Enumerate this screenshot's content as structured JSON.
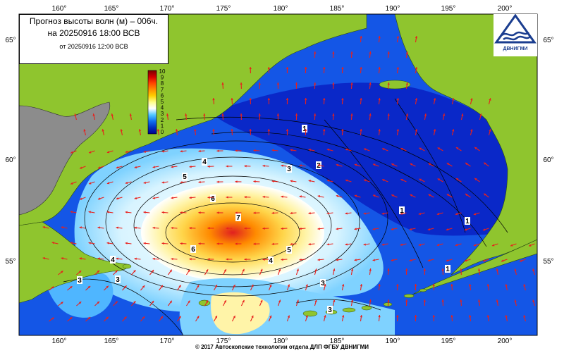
{
  "title": {
    "line1": "Прогноз высоты волн (м) – 006ч.",
    "line2": "на 20250916 18:00 ВСВ",
    "line3": "от 20250916 12:00 ВСВ"
  },
  "logo_text": "ДВНИГМИ",
  "copyright": "© 2017 Автоскопские технологии отдела ДЛП ФГБУ ДВНИГМИ",
  "longitude_labels": [
    "160°",
    "165°",
    "170°",
    "175°",
    "180°",
    "185°",
    "190°",
    "195°",
    "200°"
  ],
  "latitude_labels": [
    "65°",
    "60°",
    "55°"
  ],
  "legend": {
    "values": [
      "10",
      "9",
      "8",
      "7",
      "6",
      "5",
      "4",
      "3",
      "2",
      "1",
      "0"
    ],
    "colors": [
      "#7a0000",
      "#cc0000",
      "#ff3300",
      "#ff8800",
      "#ffcc00",
      "#ffff66",
      "#ffffff",
      "#33aaff",
      "#0055ee",
      "#0022aa",
      "#000080"
    ]
  },
  "contour_labels": [
    "1",
    "2",
    "3",
    "4",
    "5",
    "6",
    "7",
    "6",
    "5",
    "4",
    "3",
    "4",
    "3",
    "3",
    "3",
    "1",
    "1",
    "1"
  ],
  "colors": {
    "land": "#8fc52e",
    "land_grey": "#8c8c8c",
    "sea_deep": "#0a28c8",
    "sea_mid": "#1f6ff0",
    "sea_light": "#5cc0ff",
    "wave_high": "#ffcc33",
    "wave_peak": "#ff7a00",
    "arrow": "#e8201c"
  }
}
